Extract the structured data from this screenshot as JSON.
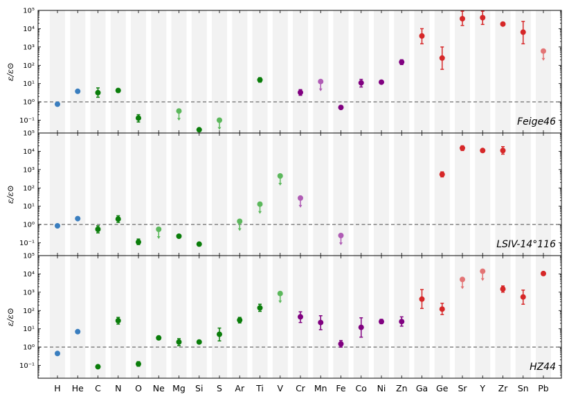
{
  "chart_data": {
    "type": "scatter",
    "y_scale": "log",
    "ylabel": "ε/ε⊙",
    "ylim": [
      0.02,
      100000
    ],
    "y_ticks": [
      {
        "value": 0.1,
        "label": "10⁻¹"
      },
      {
        "value": 1,
        "label": "10⁰"
      },
      {
        "value": 10,
        "label": "10¹"
      },
      {
        "value": 100,
        "label": "10²"
      },
      {
        "value": 1000,
        "label": "10³"
      },
      {
        "value": 10000,
        "label": "10⁴"
      },
      {
        "value": 100000,
        "label": "10⁵"
      }
    ],
    "solar_reference": 1,
    "grid": "alternating-column-shading",
    "categories": [
      "H",
      "He",
      "C",
      "N",
      "O",
      "Ne",
      "Mg",
      "Si",
      "S",
      "Ar",
      "Ti",
      "V",
      "Cr",
      "Mn",
      "Fe",
      "Co",
      "Ni",
      "Zn",
      "Ga",
      "Ge",
      "Sr",
      "Y",
      "Zr",
      "Sn",
      "Pb"
    ],
    "group_colors": {
      "light": "#3a7ebf",
      "intermediate": "#0a7d0a",
      "intermediate_limit": "#5cb85c",
      "iron_group": "#800080",
      "iron_group_limit": "#b05cb5",
      "heavy": "#d62728",
      "heavy_limit": "#e37475"
    },
    "panels": [
      {
        "name": "Feige46",
        "points": [
          {
            "el": "H",
            "value": 0.75,
            "group": "light"
          },
          {
            "el": "He",
            "value": 3.8,
            "group": "light"
          },
          {
            "el": "C",
            "value": 3.2,
            "err": [
              1.8,
              5.8
            ],
            "group": "intermediate"
          },
          {
            "el": "N",
            "value": 4.2,
            "err": [
              3.3,
              5.2
            ],
            "group": "intermediate"
          },
          {
            "el": "O",
            "value": 0.13,
            "err": [
              0.08,
              0.2
            ],
            "group": "intermediate"
          },
          {
            "el": "Mg",
            "value": 0.32,
            "upper_limit": true,
            "group": "intermediate_limit"
          },
          {
            "el": "Si",
            "value": 0.03,
            "group": "intermediate"
          },
          {
            "el": "S",
            "value": 0.1,
            "upper_limit": true,
            "group": "intermediate_limit"
          },
          {
            "el": "Ti",
            "value": 16,
            "err": [
              12,
              21
            ],
            "group": "intermediate"
          },
          {
            "el": "Cr",
            "value": 3.3,
            "err": [
              2.3,
              4.7
            ],
            "group": "iron_group"
          },
          {
            "el": "Mn",
            "value": 13,
            "upper_limit": true,
            "group": "iron_group_limit"
          },
          {
            "el": "Fe",
            "value": 0.5,
            "err": [
              0.4,
              0.62
            ],
            "group": "iron_group"
          },
          {
            "el": "Co",
            "value": 11,
            "err": [
              6.5,
              17
            ],
            "group": "iron_group"
          },
          {
            "el": "Ni",
            "value": 12,
            "group": "iron_group"
          },
          {
            "el": "Zn",
            "value": 150,
            "err": [
              110,
              200
            ],
            "group": "iron_group"
          },
          {
            "el": "Ga",
            "value": 4000,
            "err": [
              1500,
              10000
            ],
            "group": "heavy"
          },
          {
            "el": "Ge",
            "value": 250,
            "err": [
              60,
              1000
            ],
            "group": "heavy"
          },
          {
            "el": "Sr",
            "value": 35000,
            "err": [
              15000,
              90000
            ],
            "group": "heavy"
          },
          {
            "el": "Y",
            "value": 40000,
            "err": [
              17000,
              90000
            ],
            "group": "heavy"
          },
          {
            "el": "Zr",
            "value": 18000,
            "group": "heavy"
          },
          {
            "el": "Sn",
            "value": 6500,
            "err": [
              1500,
              25000
            ],
            "group": "heavy"
          },
          {
            "el": "Pb",
            "value": 600,
            "upper_limit": true,
            "group": "heavy_limit"
          }
        ]
      },
      {
        "name": "LSIV-14°116",
        "points": [
          {
            "el": "H",
            "value": 0.85,
            "group": "light"
          },
          {
            "el": "He",
            "value": 2.1,
            "group": "light"
          },
          {
            "el": "C",
            "value": 0.55,
            "err": [
              0.35,
              0.85
            ],
            "group": "intermediate"
          },
          {
            "el": "N",
            "value": 2.0,
            "err": [
              1.3,
              3.0
            ],
            "group": "intermediate"
          },
          {
            "el": "O",
            "value": 0.11,
            "err": [
              0.08,
              0.16
            ],
            "group": "intermediate"
          },
          {
            "el": "Ne",
            "value": 0.55,
            "upper_limit": true,
            "group": "intermediate_limit"
          },
          {
            "el": "Mg",
            "value": 0.23,
            "group": "intermediate"
          },
          {
            "el": "Si",
            "value": 0.085,
            "group": "intermediate"
          },
          {
            "el": "Ar",
            "value": 1.5,
            "upper_limit": true,
            "group": "intermediate_limit"
          },
          {
            "el": "Ti",
            "value": 13,
            "upper_limit": true,
            "group": "intermediate_limit"
          },
          {
            "el": "V",
            "value": 450,
            "upper_limit": true,
            "group": "intermediate_limit"
          },
          {
            "el": "Cr",
            "value": 28,
            "upper_limit": true,
            "group": "iron_group_limit"
          },
          {
            "el": "Fe",
            "value": 0.25,
            "upper_limit": true,
            "group": "iron_group_limit"
          },
          {
            "el": "Ge",
            "value": 550,
            "err": [
              400,
              750
            ],
            "group": "heavy"
          },
          {
            "el": "Sr",
            "value": 15000,
            "err": [
              11000,
              20000
            ],
            "group": "heavy"
          },
          {
            "el": "Y",
            "value": 11000,
            "group": "heavy"
          },
          {
            "el": "Zr",
            "value": 11000,
            "err": [
              7000,
              18000
            ],
            "group": "heavy"
          }
        ]
      },
      {
        "name": "HZ44",
        "points": [
          {
            "el": "H",
            "value": 0.45,
            "group": "light"
          },
          {
            "el": "He",
            "value": 7,
            "group": "light"
          },
          {
            "el": "C",
            "value": 0.085,
            "err": [
              0.07,
              0.1
            ],
            "group": "intermediate"
          },
          {
            "el": "N",
            "value": 28,
            "err": [
              18,
              42
            ],
            "group": "intermediate"
          },
          {
            "el": "O",
            "value": 0.12,
            "err": [
              0.09,
              0.16
            ],
            "group": "intermediate"
          },
          {
            "el": "Ne",
            "value": 3.2,
            "err": [
              2.6,
              4.0
            ],
            "group": "intermediate"
          },
          {
            "el": "Mg",
            "value": 1.9,
            "err": [
              1.2,
              2.9
            ],
            "group": "intermediate"
          },
          {
            "el": "Si",
            "value": 1.9,
            "group": "intermediate"
          },
          {
            "el": "S",
            "value": 5,
            "err": [
              2.2,
              11
            ],
            "group": "intermediate"
          },
          {
            "el": "Ar",
            "value": 30,
            "err": [
              21,
              42
            ],
            "group": "intermediate"
          },
          {
            "el": "Ti",
            "value": 140,
            "err": [
              90,
              220
            ],
            "group": "intermediate"
          },
          {
            "el": "V",
            "value": 850,
            "upper_limit": true,
            "group": "intermediate_limit"
          },
          {
            "el": "Cr",
            "value": 45,
            "err": [
              22,
              85
            ],
            "group": "iron_group"
          },
          {
            "el": "Mn",
            "value": 22,
            "err": [
              9,
              52
            ],
            "group": "iron_group"
          },
          {
            "el": "Fe",
            "value": 1.5,
            "err": [
              1.0,
              2.3
            ],
            "group": "iron_group"
          },
          {
            "el": "Co",
            "value": 12,
            "err": [
              3.5,
              40
            ],
            "group": "iron_group"
          },
          {
            "el": "Ni",
            "value": 25,
            "err": [
              19,
              33
            ],
            "group": "iron_group"
          },
          {
            "el": "Zn",
            "value": 25,
            "err": [
              14,
              45
            ],
            "group": "iron_group"
          },
          {
            "el": "Ga",
            "value": 420,
            "err": [
              130,
              1400
            ],
            "group": "heavy"
          },
          {
            "el": "Ge",
            "value": 120,
            "err": [
              60,
              250
            ],
            "group": "heavy"
          },
          {
            "el": "Sr",
            "value": 5000,
            "upper_limit": true,
            "group": "heavy_limit"
          },
          {
            "el": "Y",
            "value": 14000,
            "upper_limit": true,
            "group": "heavy_limit"
          },
          {
            "el": "Zr",
            "value": 1500,
            "err": [
              1000,
              2200
            ],
            "group": "heavy"
          },
          {
            "el": "Sn",
            "value": 550,
            "err": [
              220,
              1300
            ],
            "group": "heavy"
          },
          {
            "el": "Pb",
            "value": 10500,
            "group": "heavy"
          }
        ]
      }
    ]
  }
}
